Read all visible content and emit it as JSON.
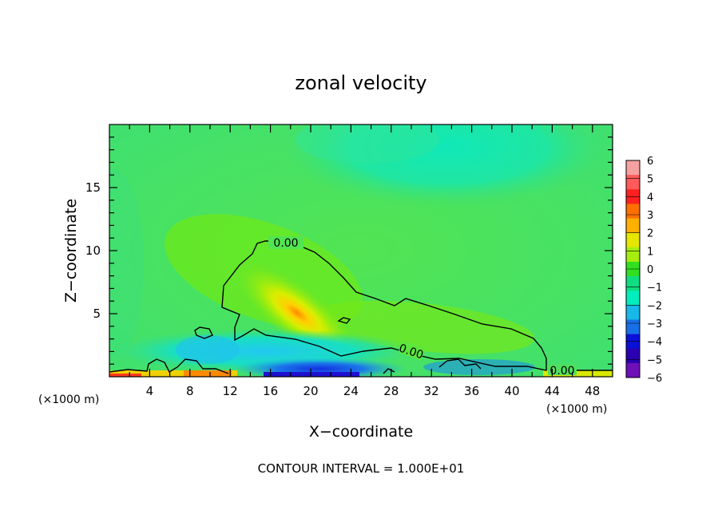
{
  "chart_data": {
    "type": "heatmap",
    "title": "zonal velocity",
    "xlabel": "X−coordinate",
    "ylabel": "Z−coordinate",
    "x_unit_left": "(×1000 m)",
    "x_unit_right": "(×1000 m)",
    "x_ticks": [
      4,
      8,
      12,
      16,
      20,
      24,
      28,
      32,
      36,
      40,
      44,
      48
    ],
    "y_ticks": [
      5,
      10,
      15
    ],
    "xlim": [
      0,
      50
    ],
    "ylim": [
      0,
      20
    ],
    "footnote": "CONTOUR INTERVAL = 1.000E+01",
    "contour_labels": [
      {
        "text": "0.00",
        "x": 17.6,
        "z": 10.5
      },
      {
        "text": "0.00",
        "x": 29.4,
        "z": 2.1
      },
      {
        "text": "0.00",
        "x": 45.2,
        "z": 0.5
      }
    ],
    "colorbar": {
      "levels": [
        "6",
        "5",
        "4",
        "3",
        "2",
        "1",
        "0",
        "−1",
        "−2",
        "−3",
        "−4",
        "−5",
        "−6"
      ],
      "colors": [
        "#f6a0a0",
        "#ff5a5a",
        "#ff2020",
        "#ff7000",
        "#ffb000",
        "#e6e600",
        "#a6ee10",
        "#30e020",
        "#10dd80",
        "#00eebb",
        "#18b8e8",
        "#1870e8",
        "#0a10d8",
        "#2a00b0",
        "#6e10b8"
      ]
    },
    "field_features": [
      {
        "feature": "background",
        "value": 0.3,
        "color": "#46e25a"
      },
      {
        "feature": "upper-right weak easterly",
        "value": -1.2,
        "color": "#1ee6a6"
      },
      {
        "feature": "core westerly jet",
        "x": 19,
        "z": 5,
        "value": 2.8,
        "color": "#ff9a00"
      },
      {
        "feature": "low-level easterly",
        "x": 22,
        "z": 0.3,
        "value": -4.5,
        "color": "#1440e0"
      },
      {
        "feature": "surface westerly",
        "x": 10,
        "z": 0.2,
        "value": 3.0,
        "color": "#ffb000"
      }
    ],
    "grid": false
  }
}
